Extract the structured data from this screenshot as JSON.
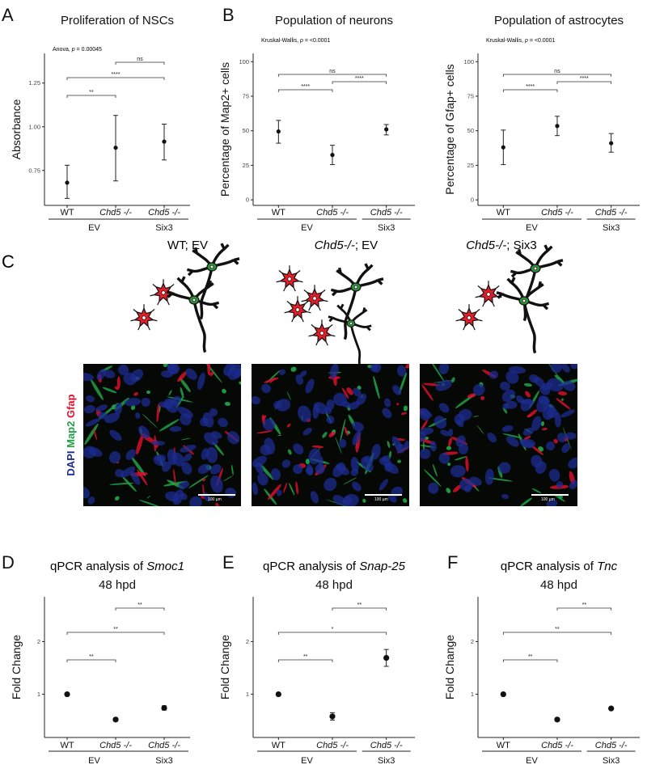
{
  "panel_letters": {
    "a": "A",
    "b": "B",
    "c": "C",
    "d": "D",
    "e": "E",
    "f": "F"
  },
  "panel_c": {
    "conditions": [
      {
        "genotype": "WT",
        "rest": "; EV"
      },
      {
        "genotype": "Chd5-/-",
        "rest": "; EV"
      },
      {
        "genotype": "Chd5-/-",
        "rest": "; Six3"
      }
    ],
    "stain": {
      "dapi": "DAPI",
      "map2": "Map2",
      "gfap": "Gfap"
    },
    "scalebar_label": "100 µm",
    "colors": {
      "map2": "#22a047",
      "gfap": "#e0102d",
      "dapi": "#1c2b8f",
      "neuron_cell": "#2e8b3a",
      "astro_cell": "#e01e2a"
    }
  },
  "x_groups": {
    "wt": "WT",
    "chd5": "Chd5 -/-",
    "ev": "EV",
    "six3": "Six3"
  },
  "chart_data": [
    {
      "id": "A",
      "type": "scatter",
      "title": "Proliferation of NSCs",
      "ylabel": "Absorbance",
      "ylim": [
        0.55,
        1.42
      ],
      "yticks": [
        0.75,
        1.0,
        1.25
      ],
      "yticklabels": [
        "0.75",
        "1.00",
        "1.25"
      ],
      "categories": [
        "WT",
        "Chd5 -/-",
        "Chd5 -/-"
      ],
      "values": [
        0.68,
        0.88,
        0.915
      ],
      "err_low": [
        0.59,
        0.69,
        0.81
      ],
      "err_high": [
        0.78,
        1.065,
        1.015
      ],
      "annotation": "Anova, p = 0.00045",
      "comparisons": [
        {
          "from": 0,
          "to": 1,
          "label": "**"
        },
        {
          "from": 0,
          "to": 2,
          "label": "****"
        },
        {
          "from": 1,
          "to": 2,
          "label": "ns"
        }
      ]
    },
    {
      "id": "B1",
      "type": "scatter",
      "title": "Population of neurons",
      "ylabel": "Percentage of Map2+ cells",
      "ylim": [
        -4,
        106
      ],
      "yticks": [
        0,
        25,
        50,
        75,
        100
      ],
      "yticklabels": [
        "0",
        "25",
        "50",
        "75",
        "100"
      ],
      "categories": [
        "WT",
        "Chd5 -/-",
        "Chd5 -/-"
      ],
      "values": [
        49.5,
        32.5,
        51
      ],
      "err_low": [
        41,
        25.5,
        47
      ],
      "err_high": [
        57.5,
        39.5,
        54.5
      ],
      "annotation": "Kruskal-Wallis, p = <0.0001",
      "comparisons": [
        {
          "from": 0,
          "to": 1,
          "label": "****"
        },
        {
          "from": 1,
          "to": 2,
          "label": "****"
        },
        {
          "from": 0,
          "to": 2,
          "label": "ns"
        }
      ]
    },
    {
      "id": "B2",
      "type": "scatter",
      "title": "Population of astrocytes",
      "ylabel": "Percentage of Gfap+ cells",
      "ylim": [
        -4,
        106
      ],
      "yticks": [
        0,
        25,
        50,
        75,
        100
      ],
      "yticklabels": [
        "0",
        "25",
        "50",
        "75",
        "100"
      ],
      "categories": [
        "WT",
        "Chd5 -/-",
        "Chd5 -/-"
      ],
      "values": [
        38,
        53.5,
        41
      ],
      "err_low": [
        25.5,
        46.5,
        34.5
      ],
      "err_high": [
        50.5,
        60.5,
        48
      ],
      "annotation": "Kruskal-Wallis, p = <0.0001",
      "comparisons": [
        {
          "from": 0,
          "to": 1,
          "label": "****"
        },
        {
          "from": 1,
          "to": 2,
          "label": "****"
        },
        {
          "from": 0,
          "to": 2,
          "label": "ns"
        }
      ]
    },
    {
      "id": "D",
      "type": "scatter",
      "title": "qPCR analysis of Smoc1",
      "subtitle": "48 hpd",
      "ylabel": "Fold Change",
      "ylim": [
        0.18,
        2.85
      ],
      "yticks": [
        1,
        2
      ],
      "yticklabels": [
        "1",
        "2"
      ],
      "categories": [
        "WT",
        "Chd5 -/-",
        "Chd5 -/-"
      ],
      "values": [
        1.0,
        0.52,
        0.74
      ],
      "err_low": [
        1.0,
        0.49,
        0.7
      ],
      "err_high": [
        1.0,
        0.55,
        0.78
      ],
      "comparisons": [
        {
          "from": 0,
          "to": 1,
          "label": "**"
        },
        {
          "from": 0,
          "to": 2,
          "label": "**"
        },
        {
          "from": 1,
          "to": 2,
          "label": "**"
        }
      ]
    },
    {
      "id": "E",
      "type": "scatter",
      "title": "qPCR analysis of Snap-25",
      "subtitle": "48 hpd",
      "ylabel": "Fold Change",
      "ylim": [
        0.18,
        2.85
      ],
      "yticks": [
        1,
        2
      ],
      "yticklabels": [
        "1",
        "2"
      ],
      "categories": [
        "WT",
        "Chd5 -/-",
        "Chd5 -/-"
      ],
      "values": [
        1.0,
        0.58,
        1.69
      ],
      "err_low": [
        1.0,
        0.51,
        1.53
      ],
      "err_high": [
        1.0,
        0.65,
        1.85
      ],
      "comparisons": [
        {
          "from": 0,
          "to": 1,
          "label": "**"
        },
        {
          "from": 0,
          "to": 2,
          "label": "*"
        },
        {
          "from": 1,
          "to": 2,
          "label": "**"
        }
      ]
    },
    {
      "id": "F",
      "type": "scatter",
      "title": "qPCR analysis of Tnc",
      "subtitle": "48 hpd",
      "ylabel": "Fold Change",
      "ylim": [
        0.18,
        2.85
      ],
      "yticks": [
        1,
        2
      ],
      "yticklabels": [
        "1",
        "2"
      ],
      "categories": [
        "WT",
        "Chd5 -/-",
        "Chd5 -/-"
      ],
      "values": [
        1.0,
        0.52,
        0.73
      ],
      "err_low": [
        1.0,
        0.49,
        0.71
      ],
      "err_high": [
        1.0,
        0.55,
        0.75
      ],
      "comparisons": [
        {
          "from": 0,
          "to": 1,
          "label": "**"
        },
        {
          "from": 0,
          "to": 2,
          "label": "**"
        },
        {
          "from": 1,
          "to": 2,
          "label": "**"
        }
      ]
    }
  ]
}
